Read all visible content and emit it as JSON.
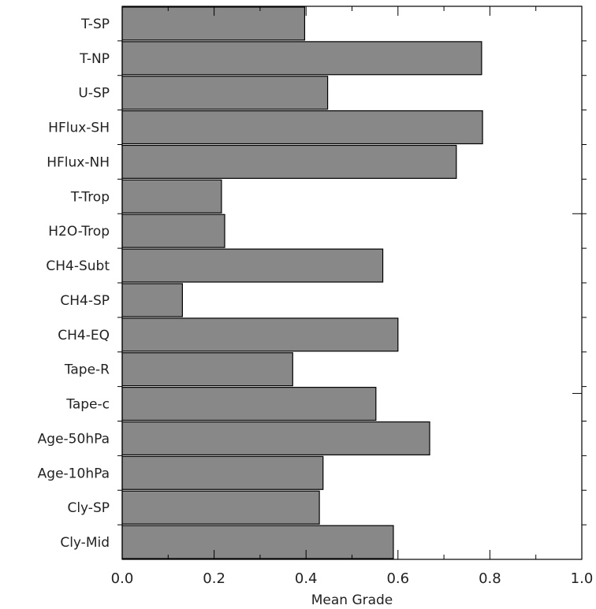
{
  "chart_data": {
    "type": "bar",
    "orientation": "horizontal",
    "categories": [
      "T-SP",
      "T-NP",
      "U-SP",
      "HFlux-SH",
      "HFlux-NH",
      "T-Trop",
      "H2O-Trop",
      "CH4-Subt",
      "CH4-SP",
      "CH4-EQ",
      "Tape-R",
      "Tape-c",
      "Age-50hPa",
      "Age-10hPa",
      "Cly-SP",
      "Cly-Mid"
    ],
    "values": [
      0.397,
      0.782,
      0.447,
      0.784,
      0.727,
      0.216,
      0.223,
      0.567,
      0.131,
      0.6,
      0.371,
      0.552,
      0.669,
      0.437,
      0.429,
      0.59
    ],
    "xlabel": "Mean Grade",
    "ylabel": "",
    "xlim": [
      0.0,
      1.0
    ],
    "xticks": [
      "0.0",
      "0.2",
      "0.4",
      "0.6",
      "0.8",
      "1.0"
    ],
    "grid": false,
    "legend": false,
    "colors": {
      "bar_fill": "#888888",
      "bar_stroke": "#000000",
      "axis": "#000000",
      "text": "#222222",
      "background": "#ffffff"
    }
  }
}
